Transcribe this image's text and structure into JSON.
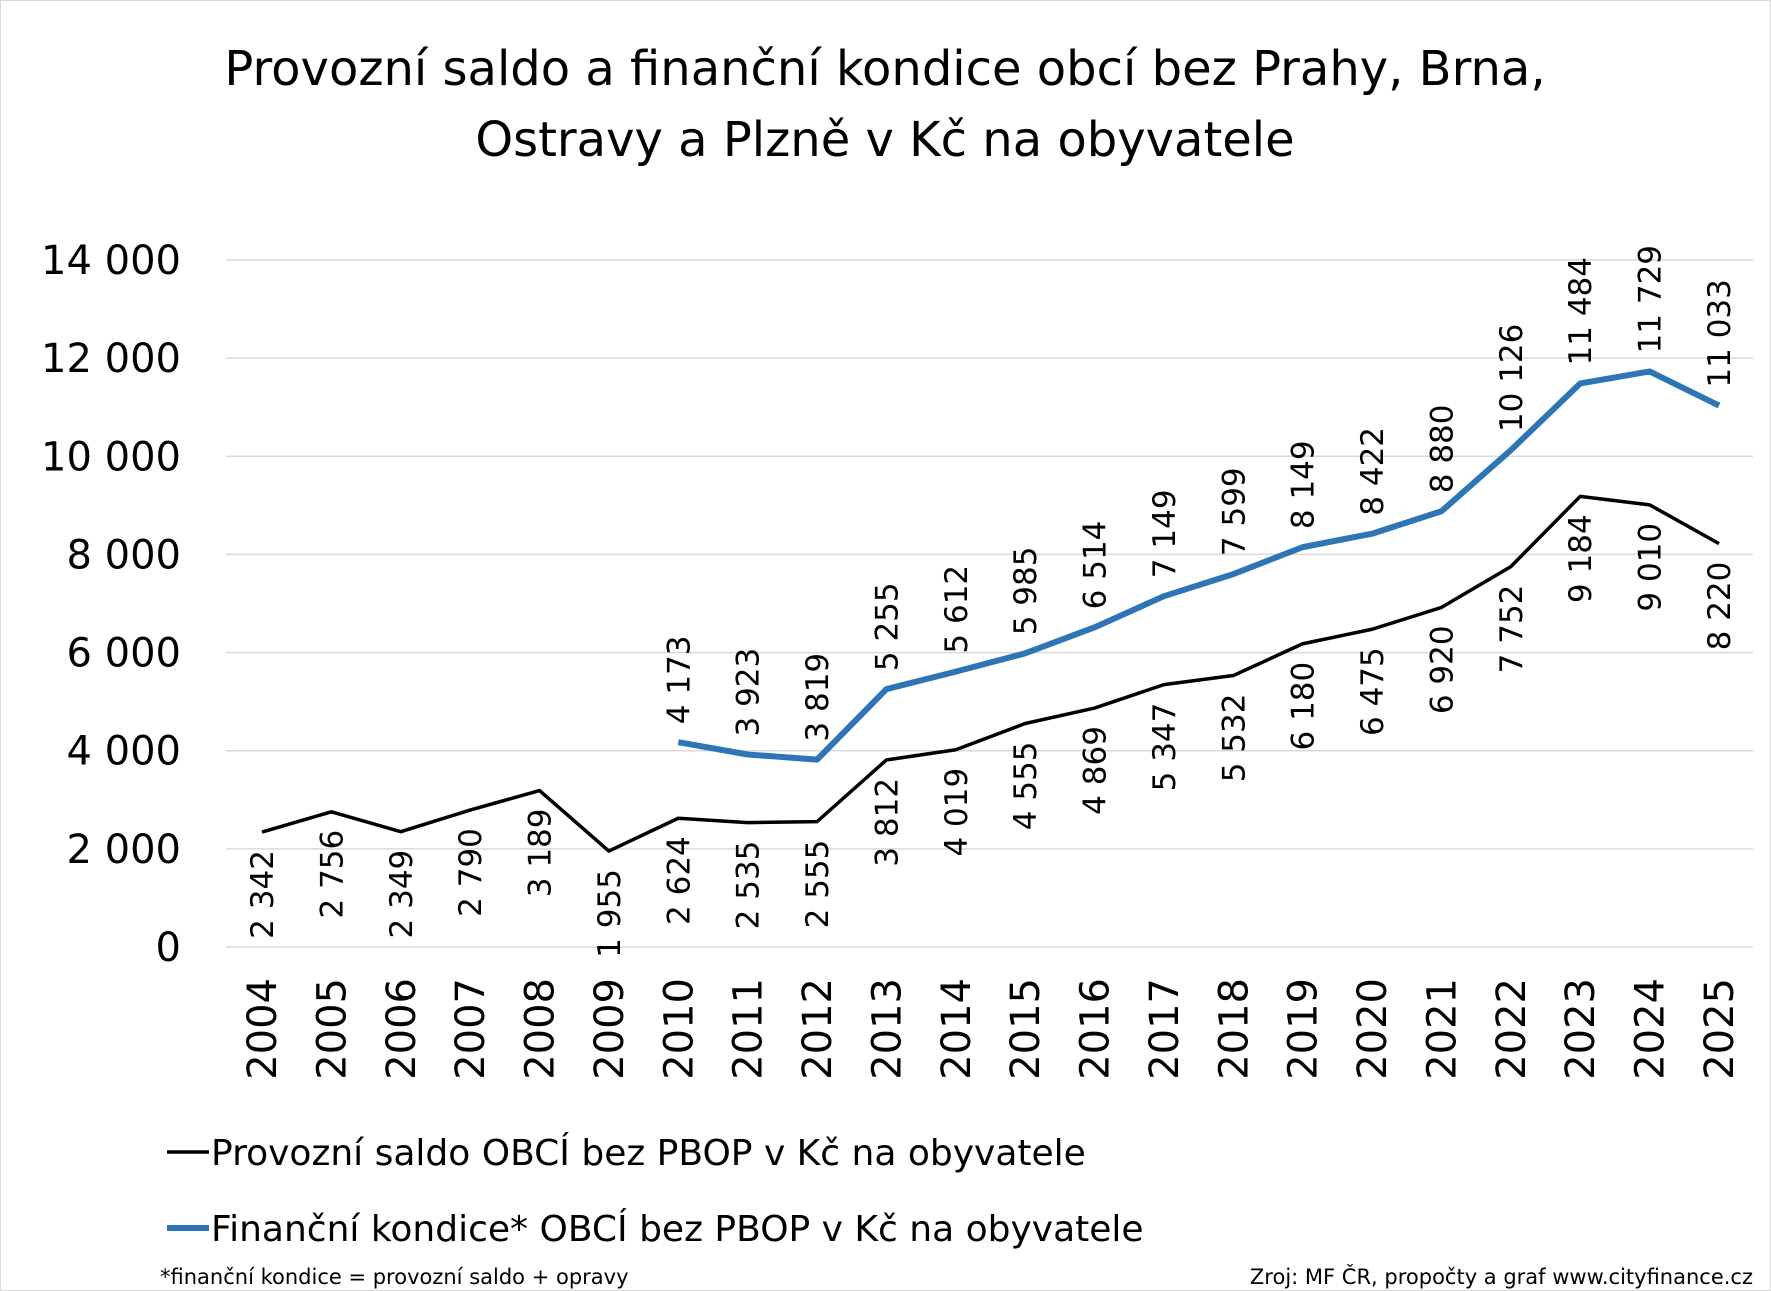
{
  "chart_data": {
    "type": "line",
    "title": [
      "Provozní saldo a finanční kondice obcí bez Prahy, Brna,",
      "Ostravy a Plzně v Kč na obyvatele"
    ],
    "categories": [
      "2004",
      "2005",
      "2006",
      "2007",
      "2008",
      "2009",
      "2010",
      "2011",
      "2012",
      "2013",
      "2014",
      "2015",
      "2016",
      "2017",
      "2018",
      "2019",
      "2020",
      "2021",
      "2022",
      "2023",
      "2024",
      "2025"
    ],
    "series": [
      {
        "name": "Provozní saldo OBCÍ bez PBOP v Kč na obyvatele",
        "color": "#000000",
        "values": [
          2342,
          2756,
          2349,
          2790,
          3189,
          1955,
          2624,
          2535,
          2555,
          3812,
          4019,
          4555,
          4869,
          5347,
          5532,
          6180,
          6475,
          6920,
          7752,
          9184,
          9010,
          8220
        ],
        "value_labels": [
          "2 342",
          "2 756",
          "2 349",
          "2 790",
          "3 189",
          "1 955",
          "2 624",
          "2 535",
          "2 555",
          "3 812",
          "4 019",
          "4 555",
          "4 869",
          "5 347",
          "5 532",
          "6 180",
          "6 475",
          "6 920",
          "7 752",
          "9 184",
          "9 010",
          "8 220"
        ]
      },
      {
        "name": "Finanční kondice* OBCÍ bez PBOP v Kč na obyvatele",
        "color": "#2e75b6",
        "values": [
          null,
          null,
          null,
          null,
          null,
          null,
          4173,
          3923,
          3819,
          5255,
          5612,
          5985,
          6514,
          7149,
          7599,
          8149,
          8422,
          8880,
          10126,
          11484,
          11729,
          11033
        ],
        "value_labels": [
          null,
          null,
          null,
          null,
          null,
          null,
          "4 173",
          "3 923",
          "3 819",
          "5 255",
          "5 612",
          "5 985",
          "6 514",
          "7 149",
          "7 599",
          "8 149",
          "8 422",
          "8 880",
          "10 126",
          "11 484",
          "11 729",
          "11 033"
        ]
      }
    ],
    "ylim": [
      0,
      14000
    ],
    "yticks": [
      0,
      {
        "value": 2000,
        "label": "2 000"
      },
      {
        "value": 4000,
        "label": "4 000"
      },
      {
        "value": 6000,
        "label": "6 000"
      },
      {
        "value": 8000,
        "label": "8 000"
      },
      {
        "value": 10000,
        "label": "10 000"
      },
      {
        "value": 12000,
        "label": "12 000"
      },
      {
        "value": 14000,
        "label": "14 000"
      }
    ],
    "grid": true,
    "footnote": "*finanční kondice = provozní  saldo + opravy",
    "source": "Zroj: MF ČR, propočty  a graf  www.cityfinance.cz"
  }
}
